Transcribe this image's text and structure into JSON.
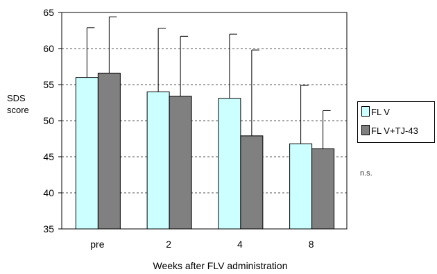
{
  "chart_data": {
    "type": "bar",
    "categories": [
      "pre",
      "2",
      "4",
      "8"
    ],
    "series": [
      {
        "name": "FLV",
        "color": "#ccffff",
        "values": [
          56.0,
          54.0,
          53.1,
          46.8
        ],
        "errors": [
          6.9,
          8.8,
          8.9,
          8.1
        ]
      },
      {
        "name": "FLV+TJ-43",
        "color": "#808080",
        "values": [
          56.6,
          53.4,
          47.9,
          46.1
        ],
        "errors": [
          7.8,
          8.3,
          11.9,
          5.3
        ]
      }
    ],
    "yticks": [
      35,
      40,
      45,
      50,
      55,
      60,
      65
    ],
    "ylim": [
      35,
      65
    ],
    "ylabel": [
      "SDS",
      "score"
    ],
    "xlabel": "Weeks after FLV administration",
    "legend_labels": [
      "FL V",
      "FL V+TJ-43"
    ],
    "annotation": "n.s.",
    "grid": "dashed horizontal",
    "legend_position": "right"
  }
}
